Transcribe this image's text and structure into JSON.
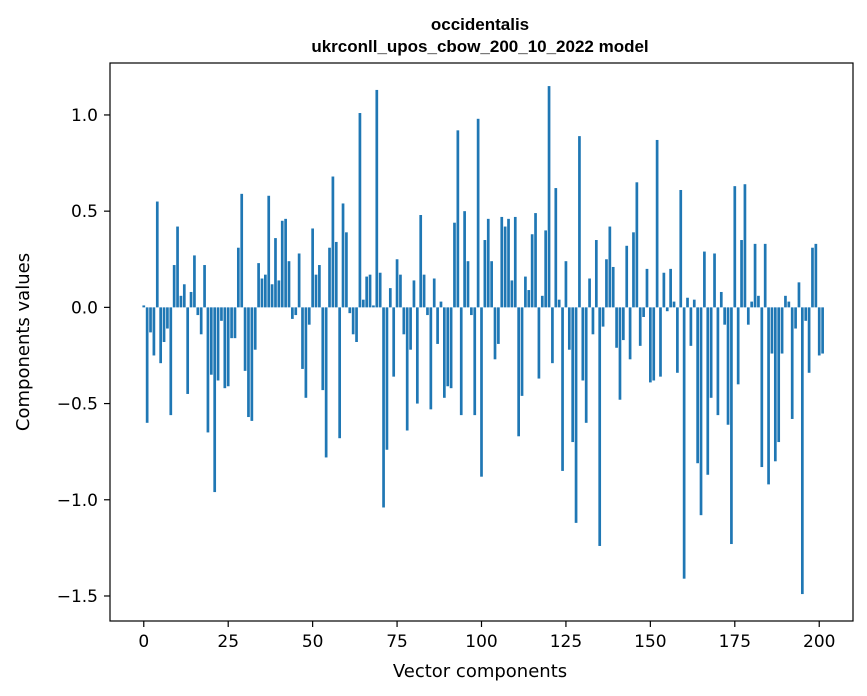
{
  "chart_data": {
    "type": "bar",
    "title": "occidentalis",
    "subtitle": "ukrconll_upos_cbow_200_10_2022 model",
    "xlabel": "Vector components",
    "ylabel": "Components values",
    "xlim": [
      -10,
      210
    ],
    "ylim": [
      -1.63,
      1.27
    ],
    "xticks": [
      0,
      25,
      50,
      75,
      100,
      125,
      150,
      175,
      200
    ],
    "yticks": [
      -1.5,
      -1.0,
      -0.5,
      0.0,
      0.5,
      1.0
    ],
    "ytick_labels": [
      "−1.5",
      "−1.0",
      "−0.5",
      "0.0",
      "0.5",
      "1.0"
    ],
    "bar_color": "#1f77b4",
    "grid": false,
    "values": [
      0.01,
      -0.6,
      -0.13,
      -0.25,
      0.55,
      -0.29,
      -0.18,
      -0.11,
      -0.56,
      0.22,
      0.42,
      0.06,
      0.12,
      -0.45,
      0.08,
      0.27,
      -0.04,
      -0.14,
      0.22,
      -0.65,
      -0.35,
      -0.96,
      -0.38,
      -0.07,
      -0.42,
      -0.41,
      -0.16,
      -0.16,
      0.31,
      0.59,
      -0.33,
      -0.57,
      -0.59,
      -0.22,
      0.23,
      0.15,
      0.17,
      0.58,
      0.12,
      0.36,
      0.14,
      0.45,
      0.46,
      0.24,
      -0.06,
      -0.04,
      0.28,
      -0.32,
      -0.47,
      -0.09,
      0.41,
      0.17,
      0.22,
      -0.43,
      -0.78,
      0.31,
      0.68,
      0.34,
      -0.68,
      0.54,
      0.39,
      -0.03,
      -0.14,
      -0.18,
      1.01,
      0.04,
      0.16,
      0.17,
      0.01,
      1.13,
      0.18,
      -1.04,
      -0.74,
      0.1,
      -0.36,
      0.25,
      0.17,
      -0.14,
      -0.64,
      -0.22,
      0.14,
      -0.5,
      0.48,
      0.17,
      -0.04,
      -0.53,
      0.15,
      -0.19,
      0.03,
      -0.47,
      -0.41,
      -0.42,
      0.44,
      0.92,
      -0.56,
      0.5,
      0.24,
      -0.04,
      -0.56,
      0.98,
      -0.88,
      0.35,
      0.46,
      0.24,
      -0.27,
      -0.19,
      0.47,
      0.42,
      0.46,
      0.14,
      0.47,
      -0.67,
      -0.46,
      0.16,
      0.09,
      0.38,
      0.49,
      -0.37,
      0.06,
      0.4,
      1.15,
      -0.29,
      0.62,
      0.04,
      -0.85,
      0.24,
      -0.22,
      -0.7,
      -1.12,
      0.89,
      -0.38,
      -0.6,
      0.15,
      -0.14,
      0.35,
      -1.24,
      -0.1,
      0.25,
      0.42,
      0.21,
      -0.21,
      -0.48,
      -0.17,
      0.32,
      -0.27,
      0.39,
      0.65,
      -0.2,
      -0.05,
      0.2,
      -0.39,
      -0.38,
      0.87,
      -0.36,
      0.18,
      -0.02,
      0.2,
      0.03,
      -0.34,
      0.61,
      -1.41,
      0.05,
      -0.2,
      0.04,
      -0.81,
      -1.08,
      0.29,
      -0.87,
      -0.47,
      0.28,
      -0.56,
      0.08,
      -0.09,
      -0.61,
      -1.23,
      0.63,
      -0.4,
      0.35,
      0.64,
      -0.09,
      0.03,
      0.33,
      0.06,
      -0.83,
      0.33,
      -0.92,
      -0.24,
      -0.8,
      -0.7,
      -0.24,
      0.06,
      0.03,
      -0.58,
      -0.11,
      0.13,
      -1.49,
      -0.07,
      -0.34,
      0.31,
      0.33,
      -0.25,
      -0.24
    ]
  }
}
